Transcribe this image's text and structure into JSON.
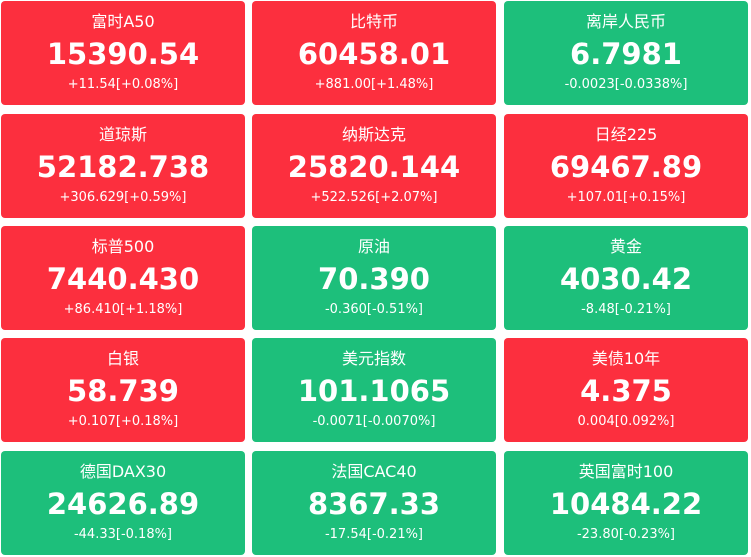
{
  "tiles": [
    {
      "name": "富时A50",
      "price": "15390.54",
      "change": "+11.54[+0.08%]",
      "color": "#fc2f3e"
    },
    {
      "name": "比特币",
      "price": "60458.01",
      "change": "+881.00[+1.48%]",
      "color": "#fc2f3e"
    },
    {
      "name": "离岸人民币",
      "price": "6.7981",
      "change": "-0.0023[-0.0338%]",
      "color": "#1dbf7b"
    },
    {
      "name": "道琼斯",
      "price": "52182.738",
      "change": "+306.629[+0.59%]",
      "color": "#fc2f3e"
    },
    {
      "name": "纳斯达克",
      "price": "25820.144",
      "change": "+522.526[+2.07%]",
      "color": "#fc2f3e"
    },
    {
      "name": "日经225",
      "price": "69467.89",
      "change": "+107.01[+0.15%]",
      "color": "#fc2f3e"
    },
    {
      "name": "标普500",
      "price": "7440.430",
      "change": "+86.410[+1.18%]",
      "color": "#fc2f3e"
    },
    {
      "name": "原油",
      "price": "70.390",
      "change": "-0.360[-0.51%]",
      "color": "#1dbf7b"
    },
    {
      "name": "黄金",
      "price": "4030.42",
      "change": "-8.48[-0.21%]",
      "color": "#1dbf7b"
    },
    {
      "name": "白银",
      "price": "58.739",
      "change": "+0.107[+0.18%]",
      "color": "#fc2f3e"
    },
    {
      "name": "美元指数",
      "price": "101.1065",
      "change": "-0.0071[-0.0070%]",
      "color": "#1dbf7b"
    },
    {
      "name": "美债10年",
      "price": "4.375",
      "change": "0.004[0.092%]",
      "color": "#fc2f3e"
    },
    {
      "name": "德国DAX30",
      "price": "24626.89",
      "change": "-44.33[-0.18%]",
      "color": "#1dbf7b"
    },
    {
      "name": "法国CAC40",
      "price": "8367.33",
      "change": "-17.54[-0.21%]",
      "color": "#1dbf7b"
    },
    {
      "name": "英国富时100",
      "price": "10484.22",
      "change": "-23.80[-0.23%]",
      "color": "#1dbf7b"
    }
  ]
}
